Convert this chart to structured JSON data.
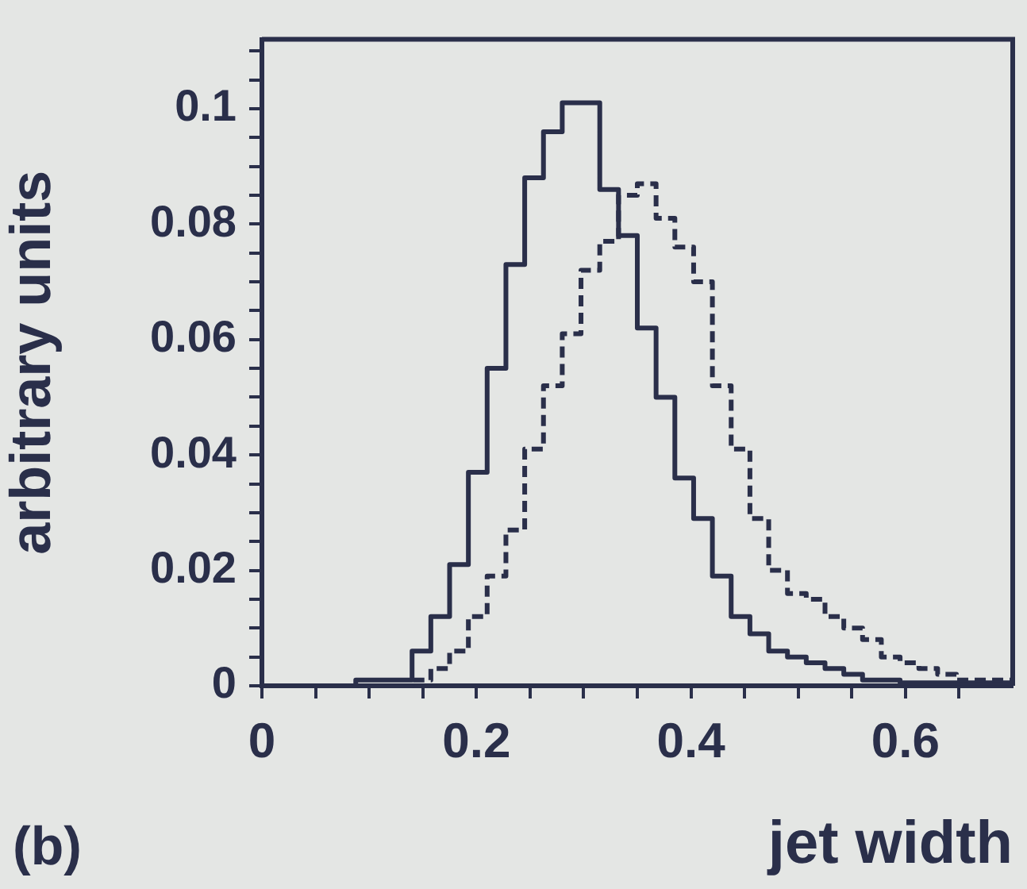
{
  "chart_data": {
    "type": "histogram",
    "xlabel": "jet width",
    "ylabel": "arbitrary units",
    "annotations": [
      "(b)"
    ],
    "bins": [
      0,
      0.0175,
      0.035,
      0.0525,
      0.07,
      0.0875,
      0.105,
      0.1225,
      0.14,
      0.1575,
      0.175,
      0.1925,
      0.21,
      0.2275,
      0.245,
      0.2625,
      0.28,
      0.2975,
      0.315,
      0.3325,
      0.35,
      0.3675,
      0.385,
      0.4025,
      0.42,
      0.4375,
      0.455,
      0.4725,
      0.49,
      0.5075,
      0.525,
      0.5425,
      0.56,
      0.5775,
      0.595,
      0.6125,
      0.63,
      0.6475,
      0.665,
      0.6825,
      0.7
    ],
    "series": [
      {
        "color": "#2a2f4a",
        "line_style": "solid",
        "values": [
          0,
          0,
          0,
          0,
          0,
          0.001,
          0.001,
          0.001,
          0.006,
          0.012,
          0.021,
          0.037,
          0.055,
          0.073,
          0.088,
          0.096,
          0.101,
          0.101,
          0.086,
          0.078,
          0.062,
          0.05,
          0.036,
          0.029,
          0.019,
          0.012,
          0.009,
          0.006,
          0.005,
          0.004,
          0.003,
          0.002,
          0.001,
          0.001,
          0.0005,
          0.0005,
          0.0005,
          0.0005,
          0.0005,
          0.0005
        ]
      },
      {
        "color": "#2a2f4a",
        "line_style": "dashed",
        "values": [
          0,
          0,
          0,
          0,
          0,
          0,
          0,
          0,
          0.001,
          0.003,
          0.006,
          0.012,
          0.019,
          0.027,
          0.041,
          0.052,
          0.061,
          0.072,
          0.077,
          0.085,
          0.087,
          0.081,
          0.076,
          0.07,
          0.052,
          0.041,
          0.029,
          0.02,
          0.016,
          0.015,
          0.012,
          0.01,
          0.008,
          0.005,
          0.004,
          0.003,
          0.002,
          0.001,
          0.001,
          0.001
        ]
      }
    ],
    "xlim": [
      0,
      0.7
    ],
    "ylim": [
      0,
      0.112
    ],
    "xticks": [
      0,
      {
        "value": 0.05,
        "label": null
      },
      {
        "value": 0.1,
        "label": null
      },
      {
        "value": 0.15,
        "label": null
      },
      0.2,
      {
        "value": 0.25,
        "label": null
      },
      {
        "value": 0.3,
        "label": null
      },
      {
        "value": 0.35,
        "label": null
      },
      0.4,
      {
        "value": 0.45,
        "label": null
      },
      {
        "value": 0.5,
        "label": null
      },
      {
        "value": 0.55,
        "label": null
      },
      0.6,
      {
        "value": 0.65,
        "label": null
      }
    ],
    "yticks": [
      0,
      {
        "value": 0.005,
        "label": null
      },
      {
        "value": 0.01,
        "label": null
      },
      {
        "value": 0.015,
        "label": null
      },
      0.02,
      {
        "value": 0.025,
        "label": null
      },
      {
        "value": 0.03,
        "label": null
      },
      {
        "value": 0.035,
        "label": null
      },
      0.04,
      {
        "value": 0.045,
        "label": null
      },
      {
        "value": 0.05,
        "label": null
      },
      {
        "value": 0.055,
        "label": null
      },
      0.06,
      {
        "value": 0.065,
        "label": null
      },
      {
        "value": 0.07,
        "label": null
      },
      {
        "value": 0.075,
        "label": null
      },
      0.08,
      {
        "value": 0.085,
        "label": null
      },
      {
        "value": 0.09,
        "label": null
      },
      {
        "value": 0.095,
        "label": null
      },
      0.1,
      {
        "value": 0.105,
        "label": null
      },
      {
        "value": 0.11,
        "label": null
      }
    ],
    "grid": false,
    "legend": false
  }
}
